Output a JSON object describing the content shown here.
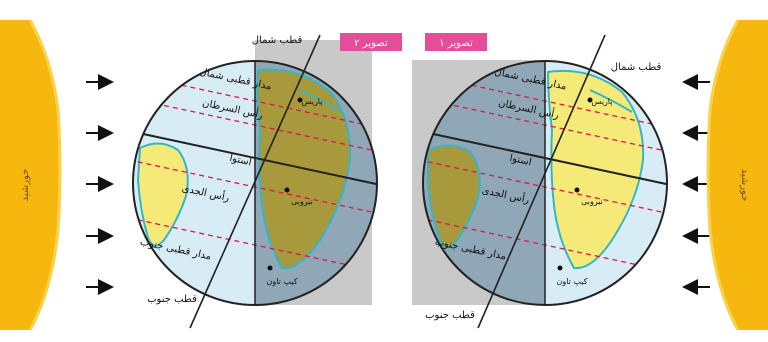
{
  "figure_1": {
    "badge": "تصویر ۱",
    "sun_label": "خورشید",
    "north_pole": "قطب شمال",
    "south_pole": "قطب جنوب",
    "arctic_circle": "مدار قطبی شمال",
    "tropic_cancer": "رأس السرطان",
    "equator": "استوا",
    "tropic_capricorn": "رأس الجدی",
    "antarctic_circle": "مدار قطبی جنوب",
    "city_north": "پاریس",
    "city_mid": "نیروبی",
    "city_south": "کیپ تاون"
  },
  "figure_2": {
    "badge": "تصویر ۲",
    "sun_label": "خورشید",
    "north_pole": "قطب شمال",
    "south_pole": "قطب جنوب",
    "arctic_circle": "مدار قطبی شمال",
    "tropic_cancer": "رأس السرطان",
    "equator": "استوا",
    "tropic_capricorn": "رأس الجدی",
    "antarctic_circle": "مدار قطبی جنوب",
    "city_north": "پاریس",
    "city_mid": "نیروبی",
    "city_south": "کیپ تاون"
  },
  "colors": {
    "badge": "#e34d9a",
    "night_panel": "#c9c9c9",
    "ocean_light": "#d8ecf6",
    "land_light": "#f5ea78",
    "land_dark": "#a89a3c",
    "ocean_dark": "#8fa7b6",
    "coast": "#35b6c8",
    "tropic_lines": "#e0174a",
    "sun": "#f6b80f",
    "arrow": "#111111"
  }
}
